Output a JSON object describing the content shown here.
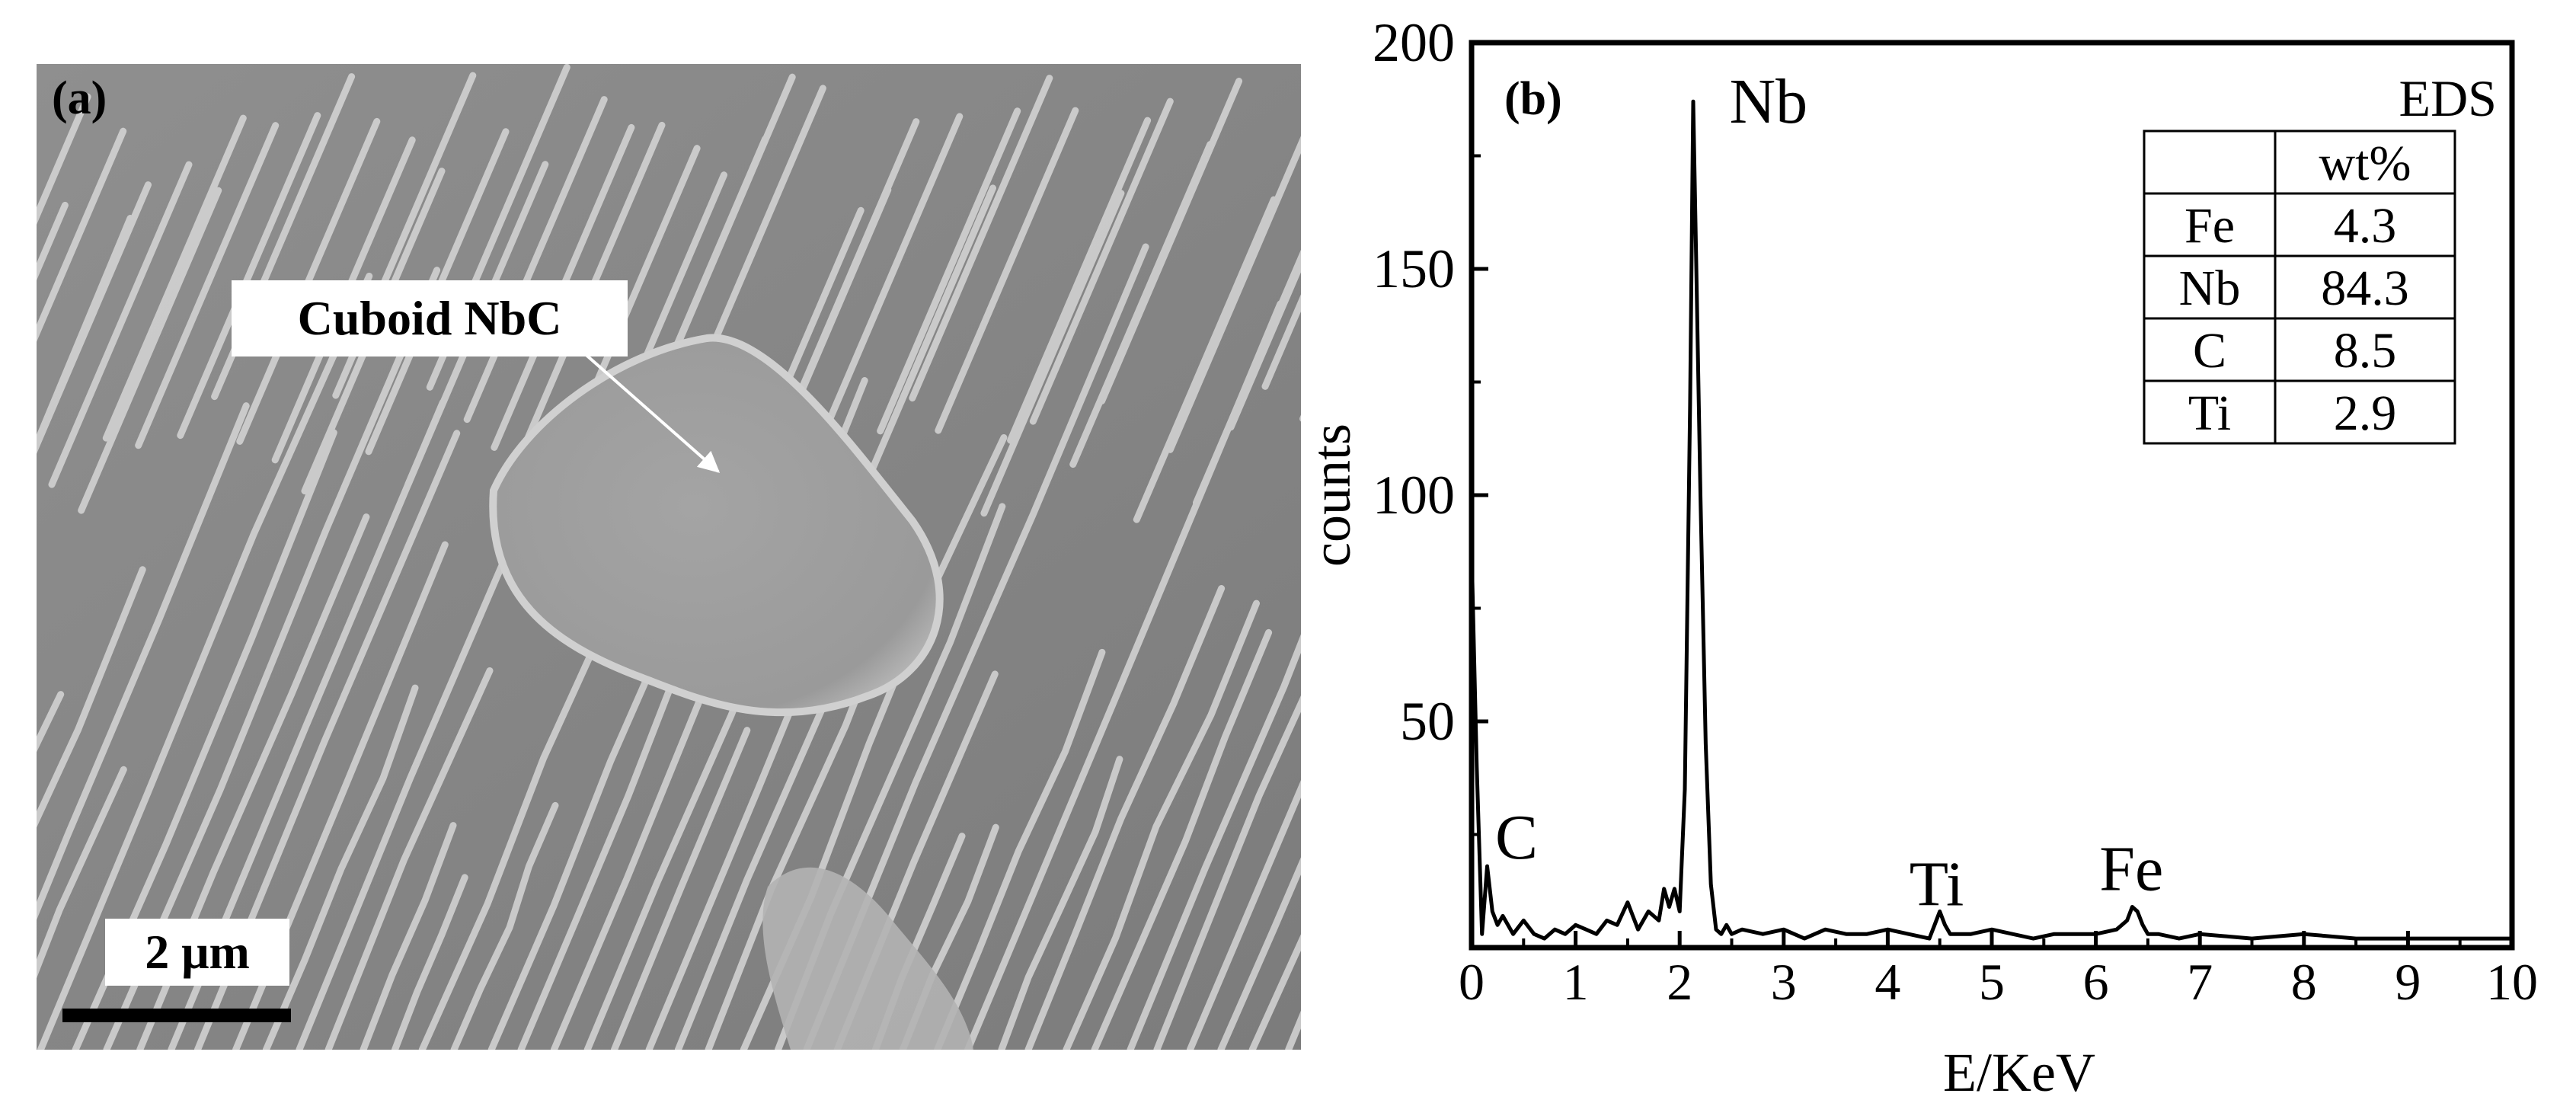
{
  "panel_a": {
    "label": "(a)",
    "callout": "Cuboid NbC",
    "scale_bar": "2 μm"
  },
  "chart_data": {
    "type": "line",
    "panel_label": "(b)",
    "xlabel": "E/KeV",
    "ylabel": "counts",
    "xlim": [
      0,
      10
    ],
    "ylim": [
      0,
      200
    ],
    "x_ticks": [
      "0",
      "1",
      "2",
      "3",
      "4",
      "5",
      "6",
      "7",
      "8",
      "9",
      "10"
    ],
    "y_ticks": [
      "50",
      "100",
      "150",
      "200"
    ],
    "grid": false,
    "series": [
      {
        "x": [
          0.0,
          0.05,
          0.1,
          0.15,
          0.2,
          0.25,
          0.3,
          0.4,
          0.5,
          0.6,
          0.7,
          0.8,
          0.9,
          1.0,
          1.1,
          1.2,
          1.3,
          1.4,
          1.5,
          1.55,
          1.6,
          1.7,
          1.8,
          1.85,
          1.9,
          1.95,
          2.0,
          2.05,
          2.1,
          2.13,
          2.16,
          2.2,
          2.25,
          2.3,
          2.35,
          2.4,
          2.45,
          2.5,
          2.6,
          2.8,
          3.0,
          3.2,
          3.4,
          3.6,
          3.8,
          4.0,
          4.2,
          4.4,
          4.45,
          4.5,
          4.55,
          4.6,
          4.8,
          5.0,
          5.2,
          5.4,
          5.6,
          5.8,
          6.0,
          6.2,
          6.3,
          6.35,
          6.4,
          6.45,
          6.5,
          6.6,
          6.8,
          7.0,
          7.5,
          8.0,
          8.5,
          9.0,
          9.5,
          10.0
        ],
        "y": [
          88,
          40,
          3,
          18,
          8,
          5,
          7,
          3,
          6,
          3,
          2,
          4,
          3,
          5,
          4,
          3,
          6,
          5,
          10,
          7,
          4,
          8,
          6,
          13,
          9,
          13,
          8,
          35,
          120,
          187,
          150,
          100,
          45,
          14,
          4,
          3,
          5,
          3,
          4,
          3,
          4,
          2,
          4,
          3,
          3,
          4,
          3,
          2,
          5,
          8,
          5,
          3,
          3,
          4,
          3,
          2,
          3,
          3,
          3,
          4,
          6,
          9,
          8,
          5,
          3,
          3,
          2,
          3,
          2,
          3,
          2,
          2,
          2,
          2
        ]
      }
    ],
    "peak_labels": [
      {
        "label": "Nb",
        "x": 2.2,
        "y": 187
      },
      {
        "label": "C",
        "x": 0.3,
        "y": 18
      },
      {
        "label": "Ti",
        "x": 4.5,
        "y": 9
      },
      {
        "label": "Fe",
        "x": 6.4,
        "y": 10
      }
    ],
    "table": {
      "title": "EDS",
      "header": [
        "",
        "wt%"
      ],
      "rows": [
        [
          "Fe",
          "4.3"
        ],
        [
          "Nb",
          "84.3"
        ],
        [
          "C",
          "8.5"
        ],
        [
          "Ti",
          "2.9"
        ]
      ]
    }
  }
}
